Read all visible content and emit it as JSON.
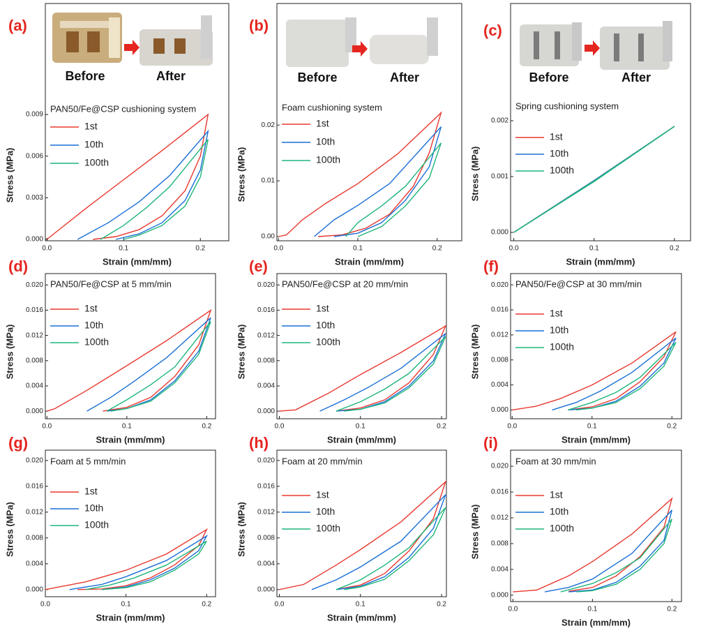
{
  "chart_data": [
    {
      "type": "line",
      "panel_label": "(a)",
      "title": "PAN50/Fe@CSP cushioning system",
      "annotations": [
        "Before",
        "After"
      ],
      "xlabel": "Strain (mm/mm)",
      "ylabel": "Stress (MPa)",
      "xlim": [
        -0.002,
        0.237
      ],
      "ylim": [
        -0.0001,
        0.017
      ],
      "xticks": [
        {
          "value": 0,
          "label": "0.0"
        },
        0.1,
        0.2
      ],
      "yticks": [
        {
          "value": 0,
          "label": "0.000"
        },
        0.003,
        0.006,
        0.009
      ],
      "series": [
        {
          "name": "1st",
          "color": "#e8382f",
          "x": [
            0,
            0.05,
            0.1,
            0.15,
            0.21,
            0.2,
            0.18,
            0.15,
            0.12,
            0.09,
            0.06
          ],
          "values": [
            0,
            0.0022,
            0.0043,
            0.0064,
            0.009,
            0.006,
            0.0035,
            0.0017,
            0.0007,
            0.0002,
            0
          ]
        },
        {
          "name": "10th",
          "color": "#1a6fd6",
          "x": [
            0.04,
            0.08,
            0.12,
            0.16,
            0.21,
            0.2,
            0.18,
            0.15,
            0.12,
            0.09
          ],
          "values": [
            0,
            0.0012,
            0.0027,
            0.0046,
            0.0078,
            0.005,
            0.0028,
            0.0012,
            0.0004,
            0
          ]
        },
        {
          "name": "100th",
          "color": "#1eb57a",
          "x": [
            0.07,
            0.1,
            0.13,
            0.16,
            0.21,
            0.2,
            0.18,
            0.15,
            0.12,
            0.1
          ],
          "values": [
            0,
            0.001,
            0.0023,
            0.0038,
            0.0072,
            0.0045,
            0.0024,
            0.001,
            0.0003,
            0
          ]
        }
      ]
    },
    {
      "type": "line",
      "panel_label": "(b)",
      "title": "Foam cushioning system",
      "annotations": [
        "Before",
        "After"
      ],
      "xlabel": "Strain (mm/mm)",
      "ylabel": "Stress (MPa)",
      "xlim": [
        -0.002,
        0.231
      ],
      "ylim": [
        -0.00075,
        0.0418
      ],
      "xticks": [
        {
          "value": 0,
          "label": "0.0"
        },
        0.1,
        0.2
      ],
      "yticks": [
        {
          "value": 0,
          "label": "0.00"
        },
        0.01,
        0.02
      ],
      "series": [
        {
          "name": "1st",
          "color": "#e8382f",
          "x": [
            0,
            0.01,
            0.03,
            0.06,
            0.1,
            0.15,
            0.205,
            0.19,
            0.17,
            0.14,
            0.11,
            0.08,
            0.05
          ],
          "values": [
            0,
            0.0003,
            0.003,
            0.006,
            0.0095,
            0.0148,
            0.0222,
            0.015,
            0.009,
            0.004,
            0.0015,
            0.0003,
            0
          ]
        },
        {
          "name": "10th",
          "color": "#1a6fd6",
          "x": [
            0.045,
            0.07,
            0.1,
            0.14,
            0.205,
            0.19,
            0.16,
            0.13,
            0.1,
            0.07
          ],
          "values": [
            0,
            0.003,
            0.0056,
            0.0095,
            0.0197,
            0.0125,
            0.0065,
            0.0025,
            0.0006,
            0
          ]
        },
        {
          "name": "100th",
          "color": "#1eb57a",
          "x": [
            0.085,
            0.1,
            0.13,
            0.16,
            0.205,
            0.19,
            0.16,
            0.13,
            0.1
          ],
          "values": [
            0,
            0.0025,
            0.0055,
            0.009,
            0.0168,
            0.0105,
            0.0055,
            0.0018,
            0
          ]
        }
      ]
    },
    {
      "type": "line",
      "panel_label": "(c)",
      "title": "Spring cushioning system",
      "annotations": [
        "Before",
        "After"
      ],
      "xlabel": "Strain (mm/mm)",
      "ylabel": "Stress (MPa)",
      "xlim": [
        -0.004,
        0.22
      ],
      "ylim": [
        -0.00015,
        0.0041
      ],
      "xticks": [
        {
          "value": 0,
          "label": "0.0"
        },
        0.1,
        0.2
      ],
      "yticks": [
        {
          "value": 0,
          "label": "0.000"
        },
        0.001,
        0.002
      ],
      "series": [
        {
          "name": "1st",
          "color": "#e8382f",
          "x": [
            0,
            0.1,
            0.2,
            0.1,
            0
          ],
          "values": [
            0,
            0.00093,
            0.0019,
            0.00092,
            0
          ]
        },
        {
          "name": "10th",
          "color": "#1a6fd6",
          "x": [
            0,
            0.1,
            0.2,
            0.1,
            0
          ],
          "values": [
            0,
            0.00093,
            0.0019,
            0.00092,
            0
          ]
        },
        {
          "name": "100th",
          "color": "#1eb57a",
          "x": [
            0,
            0.1,
            0.2,
            0.1,
            0
          ],
          "values": [
            0,
            0.00092,
            0.0019,
            0.00091,
            0
          ]
        }
      ]
    },
    {
      "type": "line",
      "panel_label": "(d)",
      "title": "PAN50/Fe@CSP at 5 mm/min",
      "xlabel": "Strain (mm/mm)",
      "ylabel": "Stress (MPa)",
      "xlim": [
        -0.002,
        0.211
      ],
      "ylim": [
        -0.0012,
        0.0218
      ],
      "xticks": [
        {
          "value": 0,
          "label": "0.0"
        },
        0.1,
        0.2
      ],
      "yticks": [
        {
          "value": 0,
          "label": "0.000"
        },
        0.004,
        0.008,
        0.012,
        0.016,
        {
          "value": 0.02,
          "label": "0.020"
        }
      ],
      "series": [
        {
          "name": "1st",
          "color": "#e8382f",
          "x": [
            0,
            0.01,
            0.05,
            0.1,
            0.15,
            0.205,
            0.19,
            0.16,
            0.13,
            0.1,
            0.07
          ],
          "values": [
            0,
            0.0004,
            0.0033,
            0.0072,
            0.0112,
            0.016,
            0.0105,
            0.0055,
            0.0022,
            0.0006,
            0
          ]
        },
        {
          "name": "10th",
          "color": "#1a6fd6",
          "x": [
            0.05,
            0.08,
            0.11,
            0.15,
            0.205,
            0.19,
            0.16,
            0.13,
            0.1,
            0.075
          ],
          "values": [
            0,
            0.0022,
            0.0048,
            0.0085,
            0.0148,
            0.0095,
            0.0048,
            0.0018,
            0.0004,
            0
          ]
        },
        {
          "name": "100th",
          "color": "#1eb57a",
          "x": [
            0.075,
            0.1,
            0.13,
            0.16,
            0.205,
            0.19,
            0.16,
            0.13,
            0.1,
            0.08
          ],
          "values": [
            0,
            0.0018,
            0.0042,
            0.007,
            0.0142,
            0.009,
            0.0045,
            0.0016,
            0.0004,
            0
          ]
        }
      ]
    },
    {
      "type": "line",
      "panel_label": "(e)",
      "title": "PAN50/Fe@CSP at 20 mm/min",
      "xlabel": "Strain (mm/mm)",
      "ylabel": "Stress (MPa)",
      "xlim": [
        -0.003,
        0.206
      ],
      "ylim": [
        -0.0012,
        0.0218
      ],
      "xticks": [
        {
          "value": 0,
          "label": "0.0"
        },
        0.1,
        0.2
      ],
      "yticks": [
        {
          "value": 0,
          "label": "0.000"
        },
        0.004,
        0.008,
        0.012,
        0.016,
        {
          "value": 0.02,
          "label": "0.020"
        }
      ],
      "series": [
        {
          "name": "1st",
          "color": "#e8382f",
          "x": [
            0,
            0.02,
            0.06,
            0.1,
            0.15,
            0.205,
            0.19,
            0.16,
            0.13,
            0.1,
            0.07
          ],
          "values": [
            0,
            0.0002,
            0.0028,
            0.0058,
            0.0093,
            0.0135,
            0.009,
            0.0045,
            0.0018,
            0.0005,
            0
          ]
        },
        {
          "name": "10th",
          "color": "#1a6fd6",
          "x": [
            0.05,
            0.08,
            0.11,
            0.15,
            0.205,
            0.19,
            0.16,
            0.13,
            0.1,
            0.07
          ],
          "values": [
            0,
            0.0018,
            0.0038,
            0.0068,
            0.0123,
            0.008,
            0.004,
            0.0015,
            0.0003,
            0
          ]
        },
        {
          "name": "100th",
          "color": "#1eb57a",
          "x": [
            0.07,
            0.1,
            0.13,
            0.16,
            0.205,
            0.19,
            0.16,
            0.13,
            0.1,
            0.08
          ],
          "values": [
            0,
            0.0015,
            0.0035,
            0.006,
            0.0118,
            0.0075,
            0.0037,
            0.0013,
            0.0003,
            0
          ]
        }
      ]
    },
    {
      "type": "line",
      "panel_label": "(f)",
      "title": "PAN50/Fe@CSP at 30 mm/min",
      "xlabel": "Strain (mm/mm)",
      "ylabel": "Stress (MPa)",
      "xlim": [
        -0.002,
        0.212
      ],
      "ylim": [
        -0.0014,
        0.0218
      ],
      "xticks": [
        {
          "value": 0,
          "label": "0.0"
        },
        0.1,
        0.2
      ],
      "yticks": [
        {
          "value": 0,
          "label": "0.000"
        },
        0.004,
        0.008,
        0.012,
        0.016,
        {
          "value": 0.02,
          "label": "0.020"
        }
      ],
      "series": [
        {
          "name": "1st",
          "color": "#e8382f",
          "x": [
            0,
            0.03,
            0.06,
            0.1,
            0.15,
            0.205,
            0.19,
            0.16,
            0.13,
            0.1,
            0.07
          ],
          "values": [
            0,
            0.0006,
            0.0018,
            0.004,
            0.0075,
            0.0125,
            0.0085,
            0.0045,
            0.0018,
            0.0005,
            0
          ]
        },
        {
          "name": "10th",
          "color": "#1a6fd6",
          "x": [
            0.05,
            0.08,
            0.11,
            0.15,
            0.205,
            0.19,
            0.16,
            0.13,
            0.1,
            0.07
          ],
          "values": [
            0,
            0.0012,
            0.003,
            0.006,
            0.0115,
            0.0075,
            0.0038,
            0.0014,
            0.0003,
            0
          ]
        },
        {
          "name": "100th",
          "color": "#1eb57a",
          "x": [
            0.07,
            0.1,
            0.13,
            0.16,
            0.205,
            0.19,
            0.16,
            0.13,
            0.1,
            0.08
          ],
          "values": [
            0,
            0.0012,
            0.0028,
            0.0052,
            0.0108,
            0.007,
            0.0034,
            0.0012,
            0.0003,
            0
          ]
        }
      ]
    },
    {
      "type": "line",
      "panel_label": "(g)",
      "title": "Foam  at 5 mm/min",
      "xlabel": "Strain (mm/mm)",
      "ylabel": "Stress (MPa)",
      "xlim": [
        0,
        0.211
      ],
      "ylim": [
        -0.0011,
        0.0216
      ],
      "xticks": [
        {
          "value": 0,
          "label": "0.0"
        },
        0.1,
        0.2
      ],
      "yticks": [
        {
          "value": 0,
          "label": "0.000"
        },
        0.004,
        0.008,
        0.012,
        0.016,
        {
          "value": 0.02,
          "label": "0.020"
        }
      ],
      "series": [
        {
          "name": "1st",
          "color": "#e8382f",
          "x": [
            0,
            0.05,
            0.1,
            0.15,
            0.2,
            0.19,
            0.16,
            0.13,
            0.1,
            0.07,
            0.04
          ],
          "values": [
            0,
            0.0012,
            0.003,
            0.0055,
            0.0093,
            0.0068,
            0.0038,
            0.0018,
            0.0006,
            0.0001,
            0
          ]
        },
        {
          "name": "10th",
          "color": "#1a6fd6",
          "x": [
            0.03,
            0.07,
            0.1,
            0.15,
            0.2,
            0.19,
            0.16,
            0.13,
            0.1,
            0.07
          ],
          "values": [
            0,
            0.0008,
            0.002,
            0.0045,
            0.0083,
            0.006,
            0.0033,
            0.0015,
            0.0004,
            0
          ]
        },
        {
          "name": "100th",
          "color": "#1eb57a",
          "x": [
            0.05,
            0.08,
            0.11,
            0.15,
            0.2,
            0.19,
            0.16,
            0.13,
            0.1,
            0.07
          ],
          "values": [
            0,
            0.0007,
            0.0018,
            0.0038,
            0.0075,
            0.0055,
            0.003,
            0.0012,
            0.0003,
            0
          ]
        }
      ]
    },
    {
      "type": "line",
      "panel_label": "(h)",
      "title": "Foam  at 20 mm/min",
      "xlabel": "Strain (mm/mm)",
      "ylabel": "Stress (MPa)",
      "xlim": [
        -0.003,
        0.206
      ],
      "ylim": [
        -0.0011,
        0.0216
      ],
      "xticks": [
        {
          "value": 0,
          "label": "0.0"
        },
        0.1,
        0.2
      ],
      "yticks": [
        {
          "value": 0,
          "label": "0.000"
        },
        0.004,
        0.008,
        0.012,
        0.016,
        {
          "value": 0.02,
          "label": "0.020"
        }
      ],
      "series": [
        {
          "name": "1st",
          "color": "#e8382f",
          "x": [
            0,
            0.03,
            0.07,
            0.1,
            0.15,
            0.205,
            0.19,
            0.16,
            0.13,
            0.1,
            0.07
          ],
          "values": [
            0,
            0.0008,
            0.0038,
            0.0062,
            0.0105,
            0.0167,
            0.011,
            0.006,
            0.0025,
            0.0007,
            0
          ]
        },
        {
          "name": "10th",
          "color": "#1a6fd6",
          "x": [
            0.04,
            0.07,
            0.1,
            0.15,
            0.205,
            0.19,
            0.16,
            0.13,
            0.1,
            0.07
          ],
          "values": [
            0,
            0.0015,
            0.0035,
            0.0075,
            0.0147,
            0.0095,
            0.005,
            0.002,
            0.0005,
            0
          ]
        },
        {
          "name": "100th",
          "color": "#1eb57a",
          "x": [
            0.07,
            0.1,
            0.13,
            0.16,
            0.205,
            0.19,
            0.16,
            0.13,
            0.1,
            0.08
          ],
          "values": [
            0,
            0.0015,
            0.0038,
            0.0065,
            0.0127,
            0.0085,
            0.0045,
            0.0016,
            0.0004,
            0
          ]
        }
      ]
    },
    {
      "type": "line",
      "panel_label": "(i)",
      "title": "Foam  at 30 mm/min",
      "xlabel": "Strain (mm/mm)",
      "ylabel": "Stress (MPa)",
      "xlim": [
        -0.003,
        0.212
      ],
      "ylim": [
        -0.001,
        0.0225
      ],
      "xticks": [
        {
          "value": 0,
          "label": "0.0"
        },
        0.1,
        0.2
      ],
      "yticks": [
        {
          "value": 0,
          "label": "0.000"
        },
        0.004,
        0.008,
        0.012,
        0.016,
        {
          "value": 0.02,
          "label": "0.020"
        }
      ],
      "series": [
        {
          "name": "1st",
          "color": "#e8382f",
          "x": [
            0,
            0.03,
            0.07,
            0.1,
            0.15,
            0.2,
            0.19,
            0.16,
            0.13,
            0.1,
            0.07
          ],
          "values": [
            0.0005,
            0.0008,
            0.003,
            0.0052,
            0.0095,
            0.015,
            0.0105,
            0.006,
            0.003,
            0.0012,
            0.0006
          ]
        },
        {
          "name": "10th",
          "color": "#1a6fd6",
          "x": [
            0.04,
            0.07,
            0.1,
            0.15,
            0.2,
            0.19,
            0.16,
            0.13,
            0.1,
            0.07
          ],
          "values": [
            0.0005,
            0.0012,
            0.0025,
            0.0065,
            0.0132,
            0.0085,
            0.0045,
            0.002,
            0.0008,
            0.0005
          ]
        },
        {
          "name": "100th",
          "color": "#1eb57a",
          "x": [
            0.06,
            0.1,
            0.13,
            0.16,
            0.2,
            0.19,
            0.16,
            0.13,
            0.1,
            0.08
          ],
          "values": [
            0.0005,
            0.0018,
            0.0035,
            0.0058,
            0.0118,
            0.008,
            0.004,
            0.0017,
            0.0007,
            0.0005
          ]
        }
      ]
    }
  ]
}
